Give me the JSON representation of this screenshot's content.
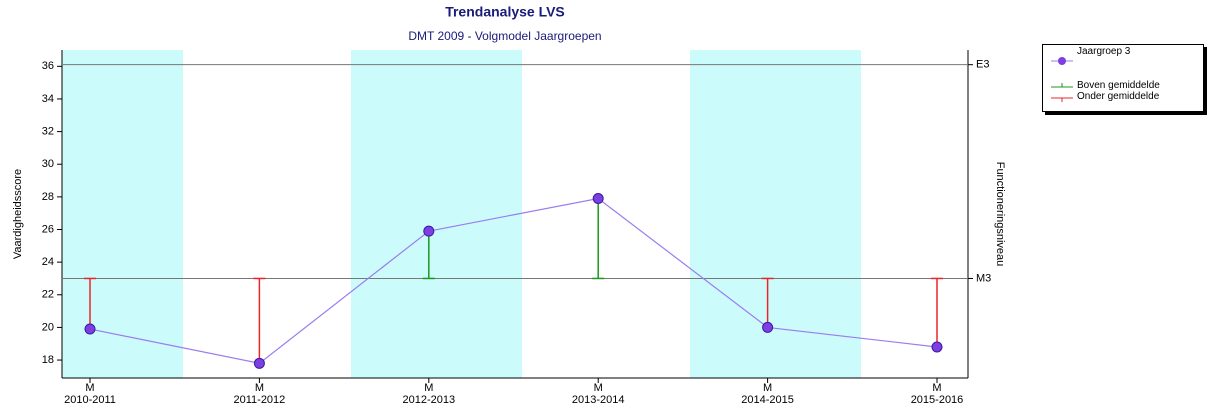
{
  "chart_data": {
    "type": "line",
    "title": "Trendanalyse LVS",
    "subtitle": "DMT 2009 - Volgmodel Jaargroepen",
    "y_label": "Vaardigheidsscore",
    "y2_label": "Functioneringsniveau",
    "categories": [
      "2010-2011",
      "2011-2012",
      "2012-2013",
      "2013-2014",
      "2014-2015",
      "2015-2016"
    ],
    "category_sublabels": [
      "M",
      "M",
      "M",
      "M",
      "M",
      "M"
    ],
    "series": [
      {
        "name": "Jaargroep 3",
        "color": "#9b7cf0",
        "marker_color": "#7b3fe4",
        "values": [
          19.9,
          17.8,
          25.9,
          27.9,
          20.0,
          18.8
        ]
      }
    ],
    "reference_lines": [
      {
        "value": 36.1,
        "label": "E3"
      },
      {
        "value": 23,
        "label": "M3"
      }
    ],
    "deviation_reference": 1,
    "deviation_legend": [
      {
        "name": "Boven gemiddelde",
        "color": "#1a9a1a"
      },
      {
        "name": "Onder gemiddelde",
        "color": "#e8262a"
      }
    ],
    "ylim": [
      16.9,
      37
    ],
    "yticks": [
      18,
      20,
      22,
      24,
      26,
      28,
      30,
      32,
      34,
      36
    ],
    "shade_color": "#ccfbfb"
  }
}
